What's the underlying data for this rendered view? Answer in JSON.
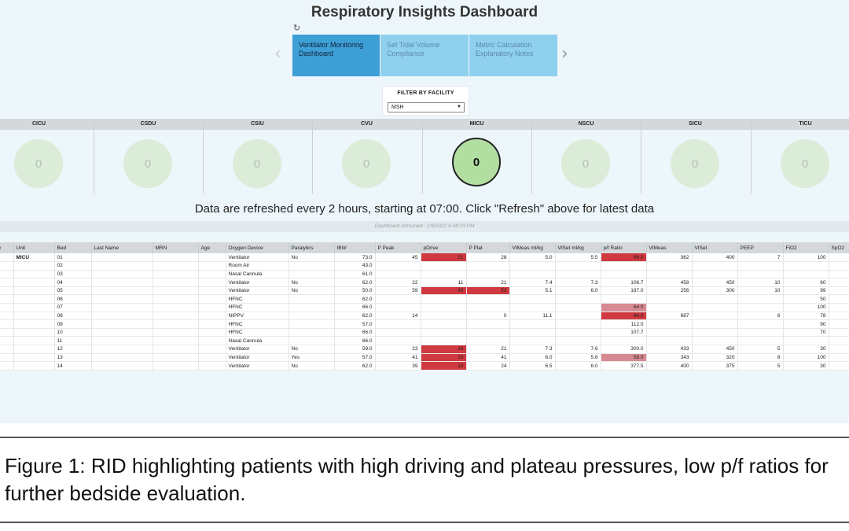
{
  "dashboard": {
    "title": "Respiratory Insights Dashboard",
    "tabs": [
      {
        "label": "Ventilator Monitoring Dashboard",
        "active": true
      },
      {
        "label": "Set Tidal Volume Compliance",
        "active": false
      },
      {
        "label": "Metric Calculation Explanatory Notes",
        "active": false
      }
    ],
    "filter": {
      "label": "FILTER BY FACILITY",
      "value": "MSH"
    },
    "units": [
      {
        "name": "CICU",
        "count": "0",
        "active": false
      },
      {
        "name": "CSDU",
        "count": "0",
        "active": false
      },
      {
        "name": "CSIU",
        "count": "0",
        "active": false
      },
      {
        "name": "CVU",
        "count": "0",
        "active": false
      },
      {
        "name": "MICU",
        "count": "0",
        "active": true
      },
      {
        "name": "NSCU",
        "count": "0",
        "active": false
      },
      {
        "name": "SICU",
        "count": "0",
        "active": false
      },
      {
        "name": "TICU",
        "count": "0",
        "active": false
      }
    ],
    "refresh_message": "Data are refreshed every 2 hours, starting at 07:00. Click \"Refresh\" above for latest data",
    "refresh_stamp": "Dashboard refreshed : 1/8/2022 6:48:33 PM",
    "colors": {
      "active_tab": "#3d9fd6",
      "inactive_tab": "#8fd0ee",
      "high_flag": "#d0393f",
      "moderate_flag": "#d88a92",
      "active_unit": "#b3dea2",
      "idle_unit": "#dbecd8"
    },
    "table": {
      "columns": [
        "ility",
        "Unit",
        "Bed",
        "Last Name",
        "MRN",
        "Age",
        "Oxygen Device",
        "Paralytics",
        "IBW",
        "P Peak",
        "pDrive",
        "P Plat",
        "VtMeas ml/kg",
        "VtSet ml/kg",
        "p/f Ratio",
        "VtMeas",
        "VtSet",
        "PEEP",
        "FiO2",
        "SpO2"
      ],
      "rows": [
        [
          "H",
          "MICU",
          "01",
          "",
          "",
          "",
          "Ventilator",
          "No",
          "73.0",
          "45",
          "21",
          "28",
          "5.0",
          "5.5",
          "96.0",
          "362",
          "400",
          "7",
          "100",
          ""
        ],
        [
          "",
          "",
          "02",
          "",
          "",
          "",
          "Room Air",
          "",
          "43.0",
          "",
          "",
          "",
          "",
          "",
          "",
          "",
          "",
          "",
          "",
          ""
        ],
        [
          "",
          "",
          "03",
          "",
          "",
          "",
          "Nasal Cannula",
          "",
          "61.0",
          "",
          "",
          "",
          "",
          "",
          "",
          "",
          "",
          "",
          "",
          ""
        ],
        [
          "",
          "",
          "04",
          "",
          "",
          "",
          "Ventilator",
          "No",
          "62.0",
          "22",
          "11",
          "21",
          "7.4",
          "7.3",
          "106.7",
          "458",
          "450",
          "10",
          "60",
          ""
        ],
        [
          "",
          "",
          "05",
          "",
          "",
          "",
          "Ventilator",
          "No",
          "50.0",
          "59",
          "43",
          "53",
          "5.1",
          "6.0",
          "187.0",
          "256",
          "300",
          "10",
          "99",
          ""
        ],
        [
          "",
          "",
          "06",
          "",
          "",
          "",
          "HFNC",
          "",
          "62.0",
          "",
          "",
          "",
          "",
          "",
          "",
          "",
          "",
          "",
          "50",
          ""
        ],
        [
          "",
          "",
          "07",
          "",
          "",
          "",
          "HFNC",
          "",
          "66.0",
          "",
          "",
          "",
          "",
          "",
          "64.0",
          "",
          "",
          "",
          "100",
          ""
        ],
        [
          "",
          "",
          "08",
          "",
          "",
          "",
          "NIPPV",
          "",
          "62.0",
          "14",
          "",
          "0",
          "11.1",
          "",
          "94.0",
          "687",
          "",
          "6",
          "78",
          ""
        ],
        [
          "",
          "",
          "09",
          "",
          "",
          "",
          "HFNC",
          "",
          "57.0",
          "",
          "",
          "",
          "",
          "",
          "112.0",
          "",
          "",
          "",
          "90",
          ""
        ],
        [
          "",
          "",
          "10",
          "",
          "",
          "",
          "HFNC",
          "",
          "66.0",
          "",
          "",
          "",
          "",
          "",
          "107.7",
          "",
          "",
          "",
          "70",
          ""
        ],
        [
          "",
          "",
          "11",
          "",
          "",
          "",
          "Nasal Cannula",
          "",
          "66.0",
          "",
          "",
          "",
          "",
          "",
          "",
          "",
          "",
          "",
          "",
          ""
        ],
        [
          "",
          "",
          "12",
          "",
          "",
          "",
          "Ventilator",
          "No",
          "59.0",
          "23",
          "16",
          "21",
          "7.3",
          "7.6",
          "300.0",
          "433",
          "450",
          "5",
          "30",
          ""
        ],
        [
          "",
          "",
          "13",
          "",
          "",
          "",
          "Ventilator",
          "Yes",
          "57.0",
          "41",
          "33",
          "41",
          "6.0",
          "5.6",
          "58.0",
          "343",
          "320",
          "8",
          "100",
          ""
        ],
        [
          "",
          "",
          "14",
          "",
          "",
          "",
          "Ventilator",
          "No",
          "62.0",
          "39",
          "19",
          "24",
          "6.5",
          "6.0",
          "377.5",
          "400",
          "375",
          "5",
          "30",
          ""
        ]
      ],
      "highlights": [
        {
          "row": 0,
          "col": 10,
          "level": "high"
        },
        {
          "row": 0,
          "col": 14,
          "level": "high"
        },
        {
          "row": 4,
          "col": 10,
          "level": "high"
        },
        {
          "row": 4,
          "col": 11,
          "level": "high"
        },
        {
          "row": 6,
          "col": 14,
          "level": "moderate"
        },
        {
          "row": 7,
          "col": 14,
          "level": "high"
        },
        {
          "row": 11,
          "col": 10,
          "level": "high"
        },
        {
          "row": 12,
          "col": 10,
          "level": "high"
        },
        {
          "row": 12,
          "col": 14,
          "level": "moderate"
        },
        {
          "row": 13,
          "col": 10,
          "level": "high"
        }
      ]
    }
  },
  "caption": "Figure 1: RID highlighting patients with high driving and plateau pressures, low p/f ratios for further bedside evaluation."
}
